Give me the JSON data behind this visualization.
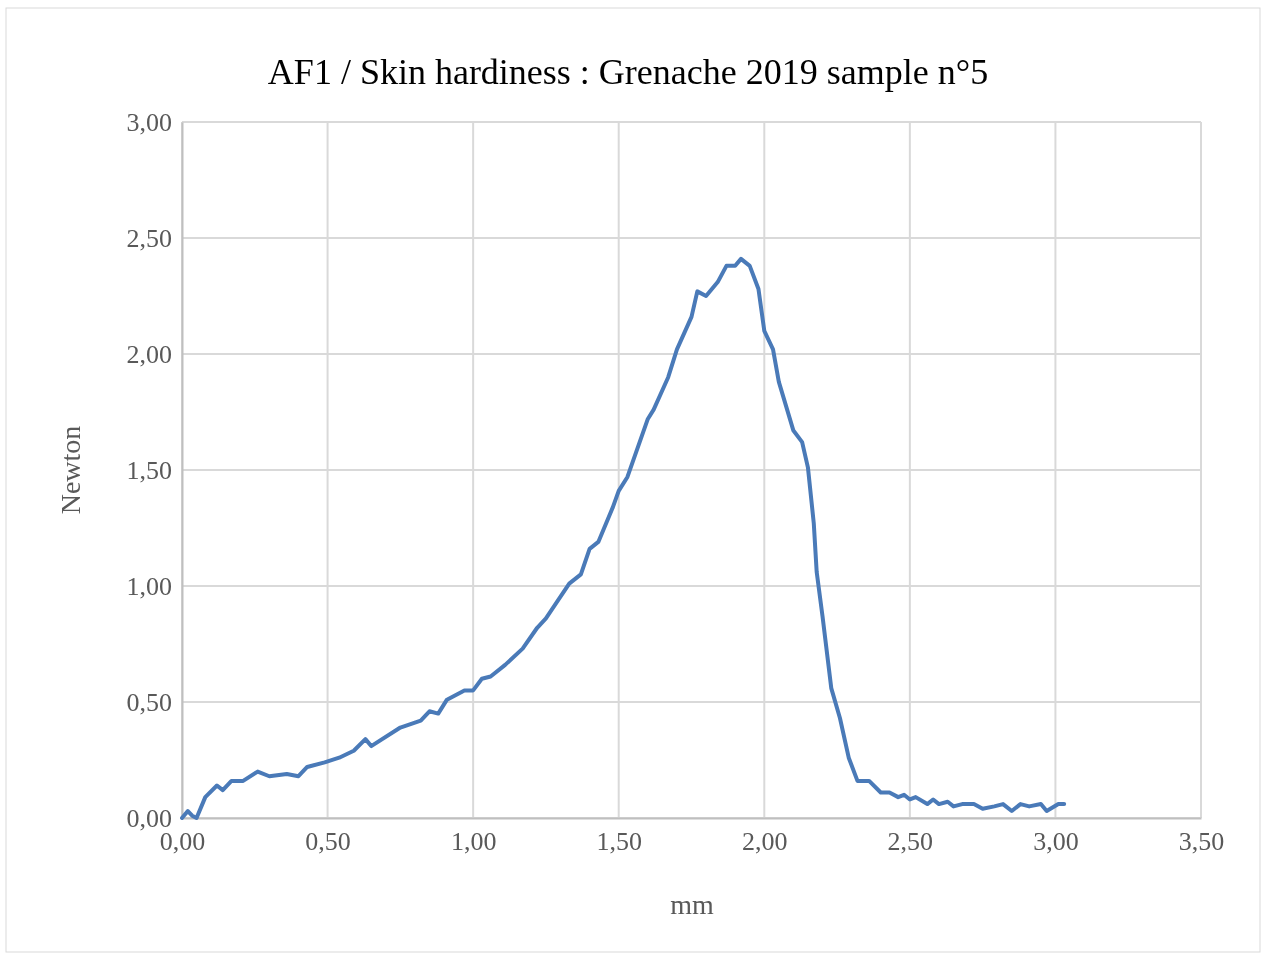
{
  "chart_data": {
    "type": "line",
    "title": "AF1 / Skin hardiness : Grenache 2019 sample n°5",
    "xlabel": "mm",
    "ylabel": "Newton",
    "series": [
      {
        "color": "#4a7ab8",
        "x": [
          0,
          0.02,
          0.035,
          0.05,
          0.08,
          0.12,
          0.14,
          0.17,
          0.21,
          0.26,
          0.3,
          0.36,
          0.4,
          0.43,
          0.49,
          0.54,
          0.59,
          0.63,
          0.65,
          0.75,
          0.82,
          0.85,
          0.88,
          0.91,
          0.97,
          1.0,
          1.03,
          1.06,
          1.11,
          1.17,
          1.22,
          1.25,
          1.33,
          1.37,
          1.4,
          1.43,
          1.48,
          1.5,
          1.53,
          1.6,
          1.62,
          1.67,
          1.7,
          1.75,
          1.77,
          1.8,
          1.84,
          1.87,
          1.9,
          1.92,
          1.95,
          1.98,
          2.0,
          2.03,
          2.05,
          2.1,
          2.13,
          2.15,
          2.17,
          2.18,
          2.2,
          2.23,
          2.26,
          2.29,
          2.32,
          2.36,
          2.4,
          2.43,
          2.46,
          2.48,
          2.5,
          2.52,
          2.56,
          2.58,
          2.6,
          2.63,
          2.65,
          2.68,
          2.72,
          2.75,
          2.79,
          2.82,
          2.85,
          2.88,
          2.91,
          2.95,
          2.97,
          3.01,
          3.03
        ],
        "values": [
          0,
          0.03,
          0.01,
          0,
          0.09,
          0.14,
          0.12,
          0.16,
          0.16,
          0.2,
          0.18,
          0.19,
          0.18,
          0.22,
          0.24,
          0.26,
          0.29,
          0.34,
          0.31,
          0.39,
          0.42,
          0.46,
          0.45,
          0.51,
          0.55,
          0.55,
          0.6,
          0.61,
          0.66,
          0.73,
          0.82,
          0.86,
          1.01,
          1.05,
          1.16,
          1.19,
          1.34,
          1.41,
          1.47,
          1.72,
          1.76,
          1.9,
          2.02,
          2.16,
          2.27,
          2.25,
          2.31,
          2.38,
          2.38,
          2.41,
          2.38,
          2.28,
          2.1,
          2.02,
          1.88,
          1.67,
          1.62,
          1.51,
          1.27,
          1.06,
          0.87,
          0.56,
          0.43,
          0.26,
          0.16,
          0.16,
          0.11,
          0.11,
          0.09,
          0.1,
          0.08,
          0.09,
          0.06,
          0.08,
          0.06,
          0.07,
          0.05,
          0.06,
          0.06,
          0.04,
          0.05,
          0.06,
          0.03,
          0.06,
          0.05,
          0.06,
          0.03,
          0.06,
          0.06
        ]
      }
    ],
    "xlim": [
      0,
      3.5
    ],
    "xticks": [
      {
        "value": 0,
        "label": "0,00"
      },
      {
        "value": 0.5,
        "label": "0,50"
      },
      {
        "value": 1,
        "label": "1,00"
      },
      {
        "value": 1.5,
        "label": "1,50"
      },
      {
        "value": 2,
        "label": "2,00"
      },
      {
        "value": 2.5,
        "label": "2,50"
      },
      {
        "value": 3,
        "label": "3,00"
      },
      {
        "value": 3.5,
        "label": "3,50"
      }
    ],
    "ylim": [
      0,
      3
    ],
    "yticks": [
      {
        "value": 0,
        "label": "0,00"
      },
      {
        "value": 0.5,
        "label": "0,50"
      },
      {
        "value": 1,
        "label": "1,00"
      },
      {
        "value": 1.5,
        "label": "1,50"
      },
      {
        "value": 2,
        "label": "2,00"
      },
      {
        "value": 2.5,
        "label": "2,50"
      },
      {
        "value": 3,
        "label": "3,00"
      }
    ],
    "grid": true,
    "marker": "none",
    "line_style": "solid"
  }
}
